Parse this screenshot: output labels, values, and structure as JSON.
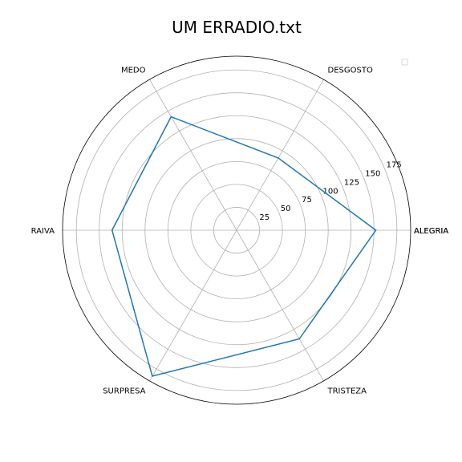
{
  "chart_data": {
    "type": "radar",
    "title": "UM ERRADIO.txt",
    "categories": [
      "ALEGRIA",
      "DESGOSTO",
      "MEDO",
      "RAIVA",
      "SURPRESA",
      "TRISTEZA"
    ],
    "closing_label": "ALEGRIA",
    "values": [
      152,
      91,
      143,
      136,
      184,
      137
    ],
    "radial_ticks": [
      "25",
      "50",
      "75",
      "100",
      "125",
      "150",
      "175"
    ],
    "rlim": [
      0,
      190
    ],
    "grid": true,
    "legend": "top-right",
    "colors": {
      "line": "#1f77b4",
      "grid": "#b0b0b0",
      "frame": "#000000",
      "legend_border": "#cccccc"
    }
  }
}
